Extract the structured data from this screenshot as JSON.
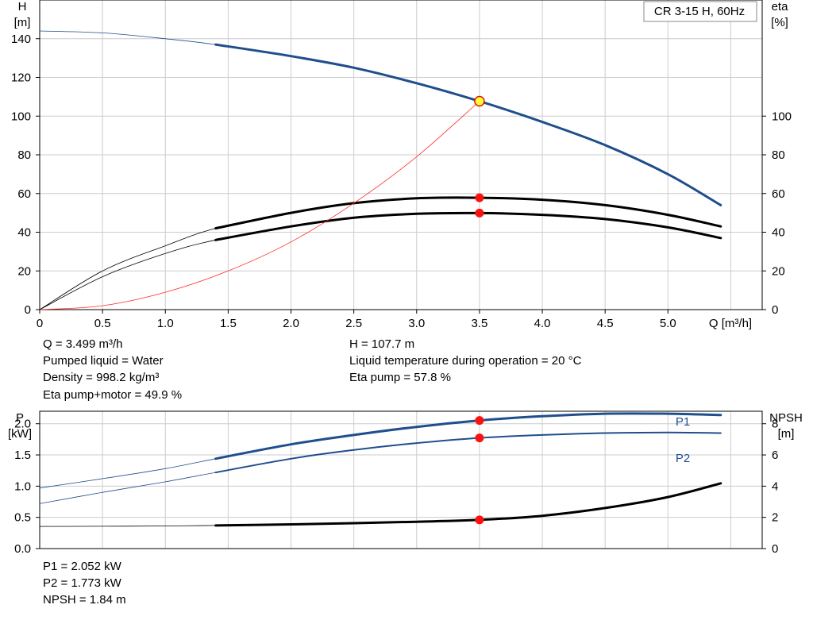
{
  "chart_data": [
    {
      "type": "line",
      "title_box": "CR 3-15 H, 60Hz",
      "xlabel": "Q [m³/h]",
      "xlim": [
        0,
        5.75
      ],
      "x_ticks": [
        "0",
        "0.5",
        "1.0",
        "1.5",
        "2.0",
        "2.5",
        "3.0",
        "3.5",
        "4.0",
        "4.5",
        "5.0"
      ],
      "y_left": {
        "label_line1": "H",
        "label_line2": "[m]",
        "lim": [
          0,
          160
        ],
        "ticks": [
          "0",
          "20",
          "40",
          "60",
          "80",
          "100",
          "120",
          "140"
        ]
      },
      "y_right": {
        "label_line1": "eta",
        "label_line2": "[%]",
        "lim": [
          0,
          160
        ],
        "ticks": [
          "0",
          "20",
          "40",
          "60",
          "80",
          "100"
        ]
      },
      "grid": true,
      "series": [
        {
          "id": "H",
          "axis": "left",
          "color": "#1f4e8c",
          "x": [
            0,
            0.5,
            1.0,
            1.4,
            2.0,
            2.5,
            3.0,
            3.5,
            4.0,
            4.5,
            5.0,
            5.42
          ],
          "y": [
            144,
            143,
            140,
            137,
            131,
            125,
            117,
            107.7,
            97,
            85,
            70,
            54
          ],
          "x_op_from": 1.4
        },
        {
          "id": "eta_pump",
          "axis": "right",
          "color": "#000000",
          "x": [
            0,
            0.5,
            1.0,
            1.4,
            2.0,
            2.5,
            3.0,
            3.5,
            4.0,
            4.5,
            5.0,
            5.42
          ],
          "y": [
            0,
            20,
            33,
            42,
            50,
            55,
            57.5,
            57.8,
            56.8,
            54,
            49,
            43
          ],
          "x_op_from": 1.4
        },
        {
          "id": "eta_pump_motor",
          "axis": "right",
          "color": "#000000",
          "x": [
            0,
            0.5,
            1.0,
            1.4,
            2.0,
            2.5,
            3.0,
            3.5,
            4.0,
            4.5,
            5.0,
            5.42
          ],
          "y": [
            0,
            17,
            29,
            36,
            43,
            47.5,
            49.5,
            49.9,
            49,
            46.8,
            42.5,
            37
          ],
          "x_op_from": 1.4
        },
        {
          "id": "system_curve",
          "axis": "left",
          "color": "#ff2a2a",
          "x": [
            0,
            0.5,
            1.0,
            1.5,
            2.0,
            2.5,
            3.0,
            3.5
          ],
          "y": [
            0,
            2,
            9,
            20,
            35,
            55,
            79,
            107.7
          ],
          "x_op_from": 0
        }
      ],
      "operating_points": [
        {
          "x": 3.5,
          "y": 107.7,
          "axis": "left",
          "style": "yellow"
        },
        {
          "x": 3.5,
          "y": 57.8,
          "axis": "right",
          "style": "red"
        },
        {
          "x": 3.5,
          "y": 49.9,
          "axis": "right",
          "style": "red"
        }
      ]
    },
    {
      "type": "line",
      "xlim": [
        0,
        5.75
      ],
      "y_left": {
        "label_line1": "P",
        "label_line2": "[kW]",
        "lim": [
          0,
          2.2
        ],
        "ticks": [
          "0.0",
          "0.5",
          "1.0",
          "1.5",
          "2.0"
        ]
      },
      "y_right": {
        "label_line1": "NPSH",
        "label_line2": "[m]",
        "lim": [
          0,
          8.8
        ],
        "ticks": [
          "0",
          "2",
          "4",
          "6",
          "8"
        ]
      },
      "grid": true,
      "series": [
        {
          "id": "P1",
          "name": "P1",
          "axis": "left",
          "color": "#1f4e8c",
          "x": [
            0,
            0.5,
            1.0,
            1.4,
            2.0,
            2.5,
            3.0,
            3.5,
            4.0,
            4.5,
            5.0,
            5.42
          ],
          "y": [
            0.97,
            1.12,
            1.28,
            1.44,
            1.67,
            1.82,
            1.95,
            2.052,
            2.12,
            2.16,
            2.16,
            2.14
          ],
          "x_op_from": 1.4
        },
        {
          "id": "P2",
          "name": "P2",
          "axis": "left",
          "color": "#1f4e8c",
          "x": [
            0,
            0.5,
            1.0,
            1.4,
            2.0,
            2.5,
            3.0,
            3.5,
            4.0,
            4.5,
            5.0,
            5.42
          ],
          "y": [
            0.72,
            0.9,
            1.07,
            1.22,
            1.44,
            1.58,
            1.69,
            1.773,
            1.82,
            1.85,
            1.86,
            1.85
          ],
          "x_op_from": 1.4
        },
        {
          "id": "NPSH",
          "axis": "right",
          "color": "#000000",
          "x": [
            0,
            0.5,
            1.0,
            1.4,
            2.0,
            2.5,
            3.0,
            3.5,
            4.0,
            4.5,
            5.0,
            5.42
          ],
          "y": [
            1.42,
            1.43,
            1.45,
            1.48,
            1.55,
            1.63,
            1.72,
            1.84,
            2.1,
            2.6,
            3.3,
            4.18
          ],
          "x_op_from": 1.4
        }
      ],
      "operating_points": [
        {
          "x": 3.5,
          "y": 2.052,
          "axis": "left",
          "style": "red"
        },
        {
          "x": 3.5,
          "y": 1.773,
          "axis": "left",
          "style": "red"
        },
        {
          "x": 3.5,
          "y": 1.84,
          "axis": "right",
          "style": "red"
        }
      ]
    }
  ],
  "info_top": {
    "q": "Q = 3.499 m³/h",
    "liquid": "Pumped liquid = Water",
    "density": "Density = 998.2 kg/m³",
    "eta_pm": "Eta pump+motor = 49.9 %",
    "h": "H = 107.7 m",
    "temp": "Liquid temperature during operation = 20 °C",
    "eta_p": "Eta pump = 57.8 %"
  },
  "info_bottom": {
    "p1": "P1 = 2.052 kW",
    "p2": "P2 = 1.773 kW",
    "npsh": "NPSH = 1.84 m"
  }
}
